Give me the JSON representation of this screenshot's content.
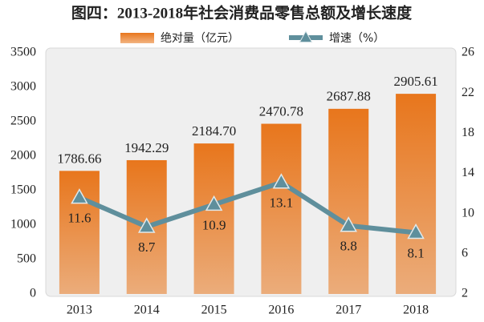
{
  "chart_data": {
    "type": "bar",
    "title": "图四：2013-2018年社会消费品零售总额及增长速度",
    "categories": [
      "2013",
      "2014",
      "2015",
      "2016",
      "2017",
      "2018"
    ],
    "series": [
      {
        "name": "绝对量（亿元）",
        "type": "bar",
        "color": "#e8761c",
        "values": [
          1786.66,
          1942.29,
          2184.7,
          2470.78,
          2687.88,
          2905.61
        ],
        "value_labels": [
          "1786.66",
          "1942.29",
          "2184.70",
          "2470.78",
          "2687.88",
          "2905.61"
        ]
      },
      {
        "name": "增速（%）",
        "type": "line",
        "axis": "y2",
        "color": "#5f8f9c",
        "values": [
          11.6,
          8.7,
          10.9,
          13.1,
          8.8,
          8.1
        ]
      }
    ],
    "ylim": [
      0,
      3500
    ],
    "yticks": [
      0,
      500,
      1000,
      1500,
      2000,
      2500,
      3000,
      3500
    ],
    "y2lim": [
      2,
      26
    ],
    "y2ticks": [
      2,
      6,
      10,
      14,
      18,
      22,
      26
    ]
  }
}
